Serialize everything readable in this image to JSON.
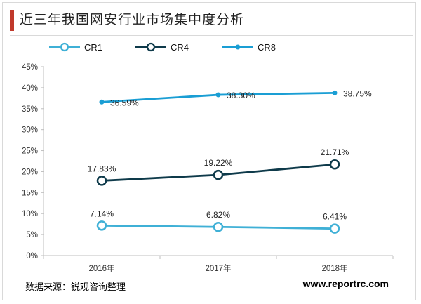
{
  "header": {
    "title": "近三年我国网安行业市场集中度分析",
    "accent_color": "#c0392b"
  },
  "footer": {
    "source": "数据来源：锐观咨询整理",
    "brand": "www.reportrc.com"
  },
  "chart_data": {
    "type": "line",
    "title": "近三年我国网安行业市场集中度分析",
    "xlabel": "",
    "ylabel": "",
    "categories": [
      "2016年",
      "2017年",
      "2018年"
    ],
    "ylim": [
      0,
      45
    ],
    "yticks": [
      "0%",
      "5%",
      "10%",
      "15%",
      "20%",
      "25%",
      "30%",
      "35%",
      "40%",
      "45%"
    ],
    "legend_position": "top",
    "grid": false,
    "series": [
      {
        "name": "CR1",
        "values": [
          7.14,
          6.82,
          6.41
        ],
        "labels": [
          "7.14%",
          "6.82%",
          "6.41%"
        ],
        "color": "#3fb0d6",
        "marker": "hollow-circle"
      },
      {
        "name": "CR4",
        "values": [
          17.83,
          19.22,
          21.71
        ],
        "labels": [
          "17.83%",
          "19.22%",
          "21.71%"
        ],
        "color": "#0e3a4a",
        "marker": "hollow-circle"
      },
      {
        "name": "CR8",
        "values": [
          36.59,
          38.3,
          38.75
        ],
        "labels": [
          "36.59%",
          "38.30%",
          "38.75%"
        ],
        "color": "#1a9ed4",
        "marker": "dot"
      }
    ]
  }
}
